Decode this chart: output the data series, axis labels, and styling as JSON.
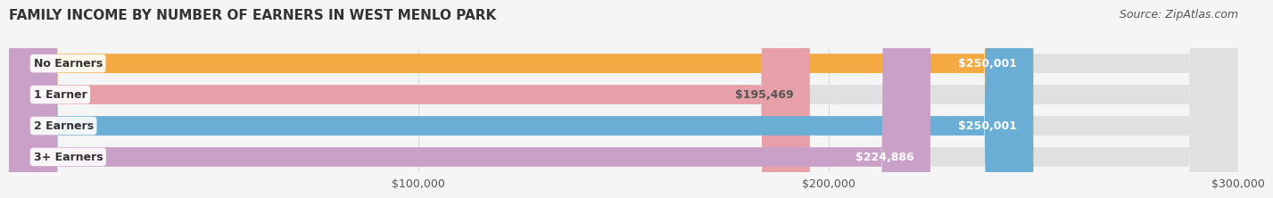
{
  "title": "FAMILY INCOME BY NUMBER OF EARNERS IN WEST MENLO PARK",
  "source": "Source: ZipAtlas.com",
  "categories": [
    "No Earners",
    "1 Earner",
    "2 Earners",
    "3+ Earners"
  ],
  "values": [
    250001,
    195469,
    250001,
    224886
  ],
  "labels": [
    "$250,001",
    "$195,469",
    "$250,001",
    "$224,886"
  ],
  "bar_colors": [
    "#F5A942",
    "#E8A0A8",
    "#6aaed6",
    "#C9A0C8"
  ],
  "label_colors": [
    "#ffffff",
    "#555555",
    "#ffffff",
    "#ffffff"
  ],
  "xmin": 0,
  "xmax": 300000,
  "xticks": [
    100000,
    200000,
    300000
  ],
  "xticklabels": [
    "$100,000",
    "$200,000",
    "$300,000"
  ],
  "background_color": "#f5f5f5",
  "title_fontsize": 11,
  "source_fontsize": 9,
  "tick_fontsize": 9,
  "bar_label_fontsize": 9,
  "category_fontsize": 9
}
